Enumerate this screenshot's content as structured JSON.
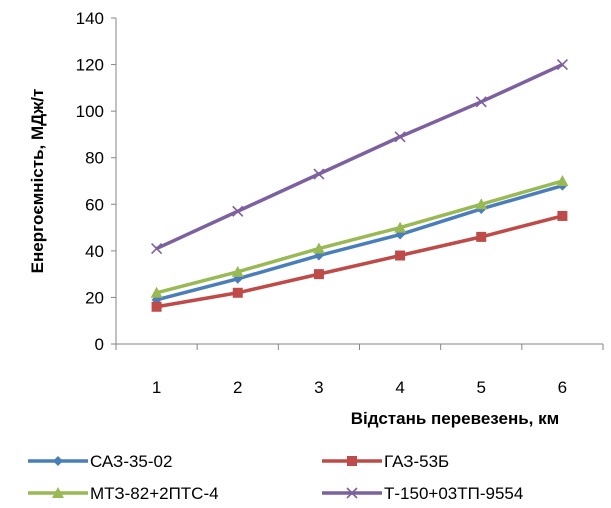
{
  "chart_data": {
    "type": "line",
    "title": "",
    "xlabel": "Відстань перевезень, км",
    "ylabel": "Енергоємність, МДж/т",
    "categories": [
      "1",
      "2",
      "3",
      "4",
      "5",
      "6"
    ],
    "ylim": [
      0,
      140
    ],
    "yticks": [
      0,
      20,
      40,
      60,
      80,
      100,
      120,
      140
    ],
    "grid": false,
    "legend_position": "bottom",
    "series": [
      {
        "name": "САЗ-35-02",
        "color": "#4A7EBB",
        "marker": "diamond",
        "values": [
          19,
          28,
          38,
          47,
          58,
          68
        ]
      },
      {
        "name": "ГАЗ-53Б",
        "color": "#BE4B48",
        "marker": "square",
        "values": [
          16,
          22,
          30,
          38,
          46,
          55
        ]
      },
      {
        "name": "МТЗ-82+2ПТС-4",
        "color": "#98B954",
        "marker": "triangle",
        "values": [
          22,
          31,
          41,
          50,
          60,
          70
        ]
      },
      {
        "name": "Т-150+03ТП-9554",
        "color": "#7D60A0",
        "marker": "x",
        "values": [
          41,
          57,
          73,
          89,
          104,
          120
        ]
      }
    ]
  }
}
